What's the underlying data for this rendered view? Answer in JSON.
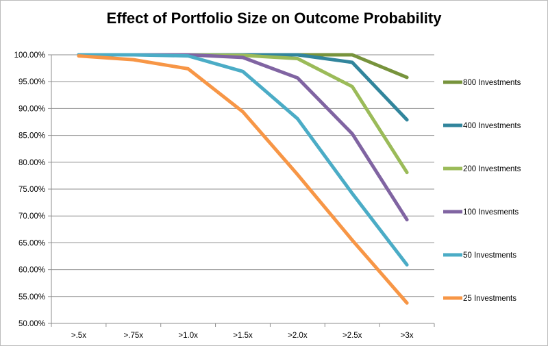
{
  "chart_data": {
    "type": "line",
    "title": "Effect of Portfolio Size on Outcome Probability",
    "xlabel": "",
    "ylabel": "",
    "categories": [
      ">.5x",
      ">.75x",
      ">1.0x",
      ">1.5x",
      ">2.0x",
      ">2.5x",
      ">3x"
    ],
    "ylim": [
      0.5,
      1.0
    ],
    "ytick_labels": [
      "50.00%",
      "55.00%",
      "60.00%",
      "65.00%",
      "70.00%",
      "75.00%",
      "80.00%",
      "85.00%",
      "90.00%",
      "95.00%",
      "100.00%"
    ],
    "grid": true,
    "legend_position": "right",
    "series": [
      {
        "name": "800 Investments",
        "color": "#77933c",
        "values": [
          1.0,
          1.0,
          1.0,
          1.0,
          1.0,
          1.0,
          0.958
        ]
      },
      {
        "name": "400 Investments",
        "color": "#31859c",
        "values": [
          1.0,
          1.0,
          1.0,
          1.0,
          1.0,
          0.986,
          0.879
        ]
      },
      {
        "name": "200 Investments",
        "color": "#9bbb59",
        "values": [
          1.0,
          1.0,
          1.0,
          0.999,
          0.993,
          0.941,
          0.781
        ]
      },
      {
        "name": "100 Invesments",
        "color": "#8064a2",
        "values": [
          1.0,
          1.0,
          1.0,
          0.995,
          0.957,
          0.853,
          0.693
        ]
      },
      {
        "name": "50 Investments",
        "color": "#4bacc6",
        "values": [
          1.0,
          1.0,
          0.998,
          0.969,
          0.881,
          0.742,
          0.609
        ]
      },
      {
        "name": "25 Investments",
        "color": "#f79646",
        "values": [
          0.998,
          0.991,
          0.974,
          0.894,
          0.777,
          0.655,
          0.538
        ]
      }
    ]
  }
}
